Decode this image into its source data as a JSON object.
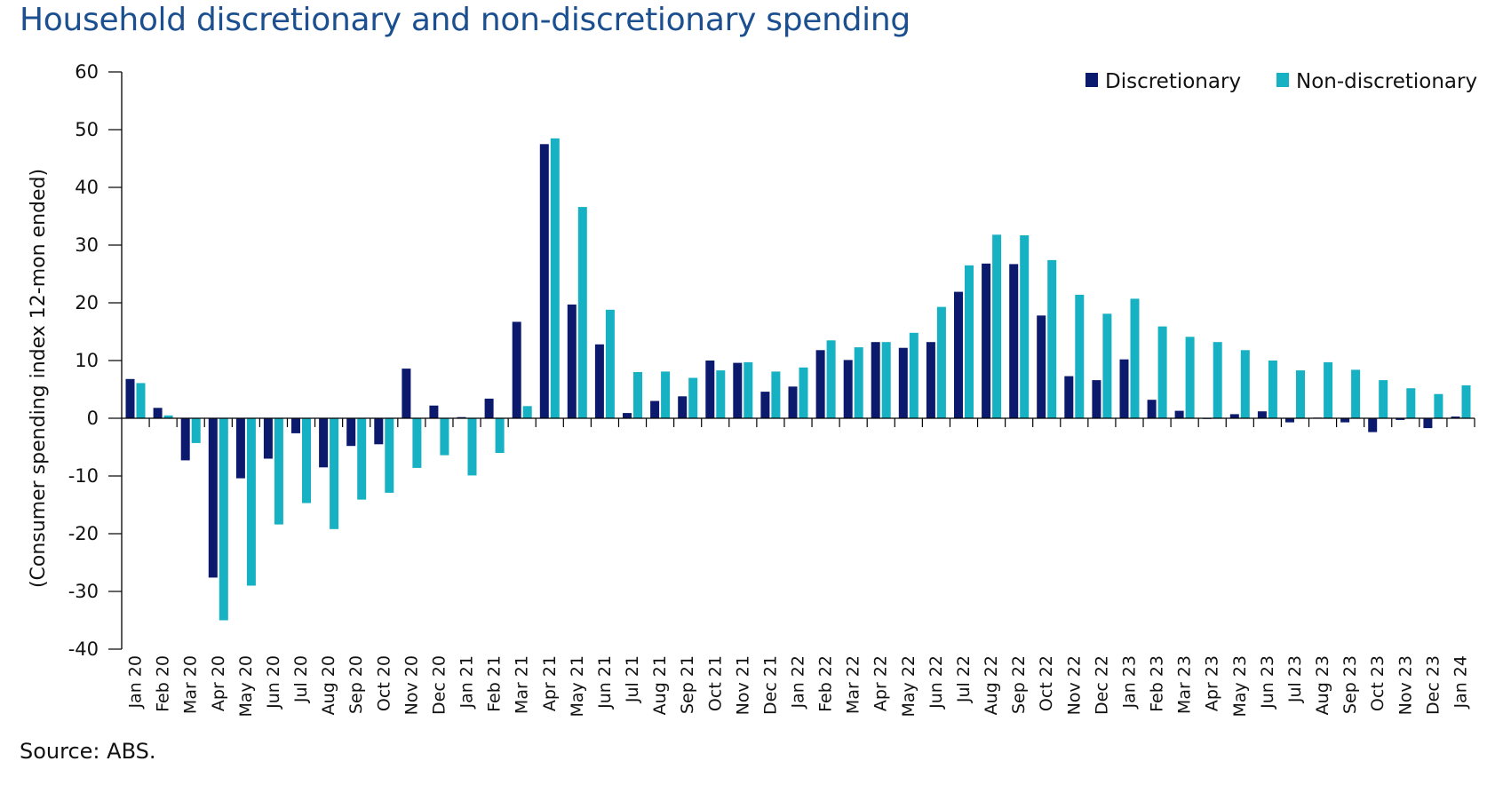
{
  "title": "Household discretionary and non-discretionary spending",
  "source": "Source: ABS.",
  "colors": {
    "discretionary": "#0c1a6e",
    "non_discretionary": "#16b1c2",
    "axis": "#000000"
  },
  "chart_data": {
    "type": "bar",
    "title": "Household discretionary and non-discretionary spending",
    "xlabel": "",
    "ylabel": "(Consumer spending index 12-mon ended)",
    "ylim": [
      -40,
      60
    ],
    "yticks": [
      60,
      50,
      40,
      30,
      20,
      10,
      0,
      -10,
      -20,
      -30,
      -40
    ],
    "grid": false,
    "legend_position": "top-right",
    "categories": [
      "Jan 20",
      "Feb 20",
      "Mar 20",
      "Apr 20",
      "May 20",
      "Jun 20",
      "Jul 20",
      "Aug 20",
      "Sep 20",
      "Oct 20",
      "Nov 20",
      "Dec 20",
      "Jan 21",
      "Feb 21",
      "Mar 21",
      "Apr 21",
      "May 21",
      "Jun 21",
      "Jul 21",
      "Aug 21",
      "Sep 21",
      "Oct 21",
      "Nov 21",
      "Dec 21",
      "Jan 22",
      "Feb 22",
      "Mar 22",
      "Apr 22",
      "May 22",
      "Jun 22",
      "Jul 22",
      "Aug 22",
      "Sep 22",
      "Oct 22",
      "Nov 22",
      "Dec 22",
      "Jan 23",
      "Feb 23",
      "Mar 23",
      "Apr 23",
      "May 23",
      "Jun 23",
      "Jul 23",
      "Aug 23",
      "Sep 23",
      "Oct 23",
      "Nov 23",
      "Dec 23",
      "Jan 24"
    ],
    "series": [
      {
        "name": "Discretionary",
        "values": [
          6.8,
          1.8,
          -7.3,
          -27.6,
          -10.4,
          -7.0,
          -2.6,
          -8.5,
          -4.8,
          -4.5,
          8.6,
          2.2,
          0.2,
          3.4,
          16.7,
          47.5,
          19.7,
          12.8,
          0.9,
          3.0,
          3.8,
          10.0,
          9.6,
          4.6,
          5.5,
          11.8,
          10.1,
          13.2,
          12.2,
          13.2,
          21.9,
          26.8,
          26.7,
          17.8,
          7.3,
          6.6,
          10.2,
          3.2,
          1.3,
          0.0,
          0.7,
          1.2,
          -0.7,
          0.1,
          -0.7,
          -2.4,
          -0.3,
          -1.7,
          0.3
        ]
      },
      {
        "name": "Non-discretionary",
        "values": [
          6.1,
          0.5,
          -4.3,
          -35.0,
          -29.0,
          -18.4,
          -14.7,
          -19.2,
          -14.1,
          -12.9,
          -8.6,
          -6.4,
          -9.9,
          -6.0,
          2.1,
          48.5,
          36.6,
          18.8,
          8.0,
          8.1,
          7.0,
          8.3,
          9.7,
          8.1,
          8.8,
          13.5,
          12.3,
          13.2,
          14.8,
          19.3,
          26.5,
          31.8,
          31.7,
          27.4,
          21.4,
          18.1,
          20.7,
          15.9,
          14.1,
          13.2,
          11.8,
          10.0,
          8.3,
          9.7,
          8.4,
          6.6,
          5.2,
          4.2,
          5.7
        ]
      }
    ]
  }
}
